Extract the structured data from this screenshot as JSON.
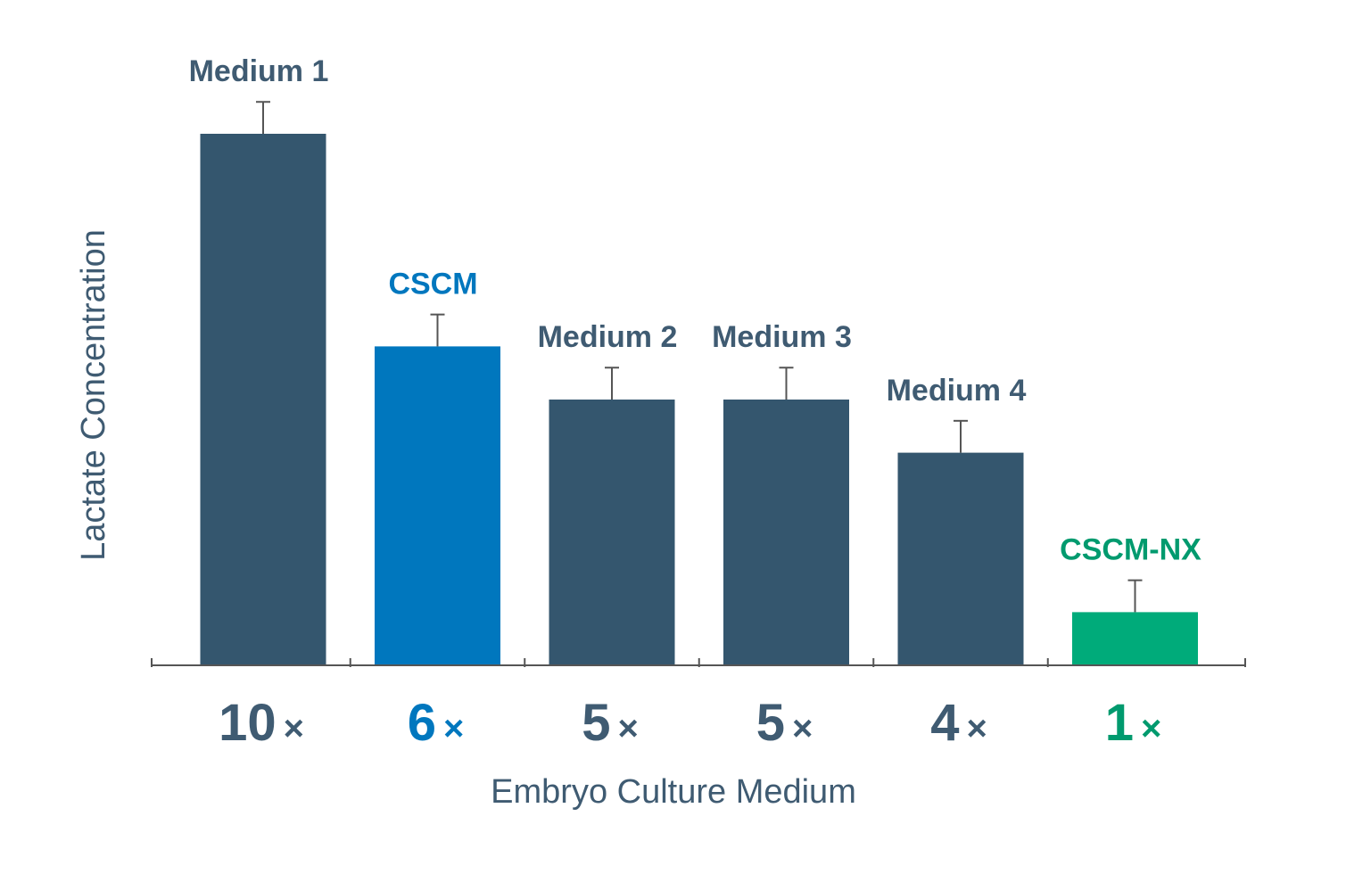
{
  "chart_data": {
    "type": "bar",
    "xlabel": "Embryo Culture Medium",
    "ylabel": "Lactate Concentration",
    "ylim": [
      0,
      10.8
    ],
    "grid": false,
    "legend": "none",
    "categories": [
      "Medium 1",
      "CSCM",
      "Medium 2",
      "Medium 3",
      "Medium 4",
      "CSCM-NX"
    ],
    "tick_labels": [
      "10",
      "6",
      "5",
      "5",
      "4",
      "1"
    ],
    "multiplier_symbol": "×",
    "values": [
      10,
      6,
      5,
      5,
      4,
      1
    ],
    "errors": [
      0.6,
      0.6,
      0.6,
      0.6,
      0.6,
      0.6
    ],
    "colors": [
      "#34566e",
      "#0077be",
      "#34566e",
      "#34566e",
      "#34566e",
      "#00ab7a"
    ],
    "label_colors": [
      "#3f5b72",
      "#0077be",
      "#3f5b72",
      "#3f5b72",
      "#3f5b72",
      "#009a6e"
    ],
    "axis_color": "#555555",
    "errorbar_color": "#555555"
  }
}
